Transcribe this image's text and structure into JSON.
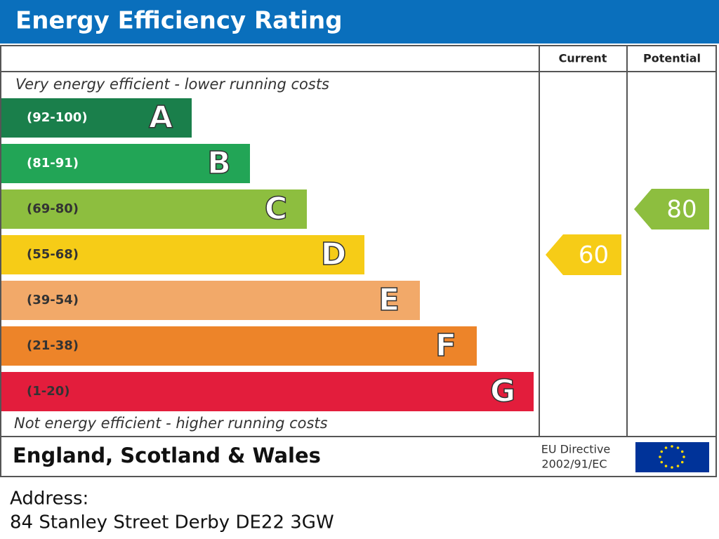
{
  "header": {
    "title": "Energy Efficiency Rating",
    "current_label": "Current",
    "potential_label": "Potential"
  },
  "notes": {
    "top": "Very energy efficient - lower running costs",
    "bottom": "Not energy efficient - higher running costs"
  },
  "bands": [
    {
      "range": "(92-100)",
      "letter": "A",
      "color": "#1a7f4b",
      "text_color": "#ffffff"
    },
    {
      "range": "(81-91)",
      "letter": "B",
      "color": "#22a556",
      "text_color": "#ffffff"
    },
    {
      "range": "(69-80)",
      "letter": "C",
      "color": "#8dbe3f",
      "text_color": "#333333"
    },
    {
      "range": "(55-68)",
      "letter": "D",
      "color": "#f6cc17",
      "text_color": "#333333"
    },
    {
      "range": "(39-54)",
      "letter": "E",
      "color": "#f2a969",
      "text_color": "#333333"
    },
    {
      "range": "(21-38)",
      "letter": "F",
      "color": "#ed8429",
      "text_color": "#333333"
    },
    {
      "range": "(1-20)",
      "letter": "G",
      "color": "#e31d3c",
      "text_color": "#333333"
    }
  ],
  "ratings": {
    "current": "60",
    "potential": "80"
  },
  "footer": {
    "region": "England, Scotland & Wales",
    "directive_line1": "EU Directive",
    "directive_line2": "2002/91/EC"
  },
  "address": {
    "label": "Address:",
    "line": "84 Stanley Street Derby DE22 3GW"
  }
}
